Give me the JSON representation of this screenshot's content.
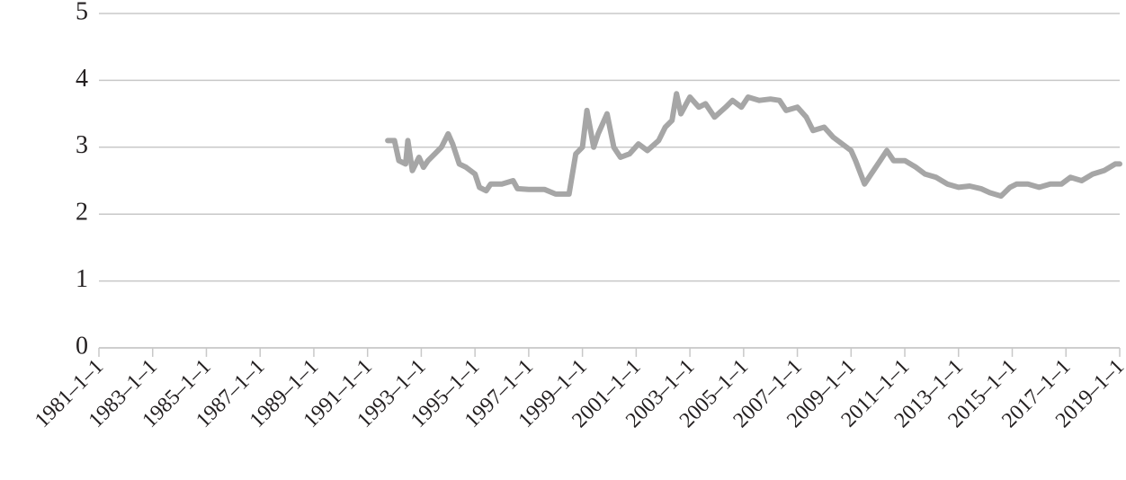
{
  "chart_data": {
    "type": "line",
    "x": [
      "1991-10-01",
      "1992-01-01",
      "1992-03-01",
      "1992-06-01",
      "1992-07-01",
      "1992-09-01",
      "1992-12-01",
      "1993-02-01",
      "1993-04-01",
      "1993-07-01",
      "1993-10-01",
      "1994-01-01",
      "1994-03-01",
      "1994-06-01",
      "1994-09-01",
      "1995-01-01",
      "1995-03-01",
      "1995-06-01",
      "1995-08-01",
      "1996-01-01",
      "1996-06-01",
      "1996-08-01",
      "1997-01-01",
      "1997-08-01",
      "1998-01-01",
      "1998-07-01",
      "1998-10-01",
      "1999-01-01",
      "1999-03-01",
      "1999-06-01",
      "1999-08-01",
      "1999-12-01",
      "2000-03-01",
      "2000-06-01",
      "2000-10-01",
      "2001-02-01",
      "2001-06-01",
      "2001-11-01",
      "2002-02-01",
      "2002-05-01",
      "2002-07-01",
      "2002-09-01",
      "2003-01-01",
      "2003-05-01",
      "2003-08-01",
      "2003-12-01",
      "2004-05-01",
      "2004-08-01",
      "2004-12-01",
      "2005-03-01",
      "2005-08-01",
      "2006-01-01",
      "2006-05-01",
      "2006-08-01",
      "2007-01-01",
      "2007-05-01",
      "2007-08-01",
      "2008-01-01",
      "2008-05-01",
      "2008-09-01",
      "2009-01-01",
      "2009-03-01",
      "2009-07-01",
      "2009-10-01",
      "2010-02-01",
      "2010-05-01",
      "2010-08-01",
      "2011-01-01",
      "2011-06-01",
      "2011-10-01",
      "2012-03-01",
      "2012-08-01",
      "2013-01-01",
      "2013-06-01",
      "2013-11-01",
      "2014-03-01",
      "2014-08-01",
      "2014-12-01",
      "2015-03-01",
      "2015-08-01",
      "2016-01-01",
      "2016-06-01",
      "2016-11-01",
      "2017-03-01",
      "2017-08-01",
      "2018-01-01",
      "2018-06-01",
      "2018-11-01",
      "2019-01-01"
    ],
    "series": [
      {
        "color": "#a6a6a6",
        "values": [
          3.1,
          3.1,
          2.8,
          2.75,
          3.1,
          2.65,
          2.85,
          2.7,
          2.8,
          2.9,
          3.0,
          3.2,
          3.05,
          2.75,
          2.7,
          2.6,
          2.4,
          2.35,
          2.45,
          2.45,
          2.5,
          2.38,
          2.37,
          2.37,
          2.3,
          2.3,
          2.9,
          3.0,
          3.55,
          3.0,
          3.2,
          3.5,
          3.0,
          2.85,
          2.9,
          3.05,
          2.95,
          3.1,
          3.3,
          3.4,
          3.8,
          3.5,
          3.75,
          3.6,
          3.65,
          3.45,
          3.6,
          3.7,
          3.6,
          3.75,
          3.7,
          3.72,
          3.7,
          3.55,
          3.6,
          3.45,
          3.25,
          3.3,
          3.15,
          3.05,
          2.95,
          2.8,
          2.45,
          2.6,
          2.8,
          2.95,
          2.8,
          2.8,
          2.7,
          2.6,
          2.55,
          2.45,
          2.4,
          2.42,
          2.38,
          2.32,
          2.27,
          2.4,
          2.45,
          2.45,
          2.4,
          2.45,
          2.45,
          2.55,
          2.5,
          2.6,
          2.65,
          2.75,
          2.75
        ]
      }
    ],
    "xlim": [
      "1981-01-01",
      "2019-01-01"
    ],
    "xticks": [
      {
        "value": "1981-01-01",
        "label": "1981–1–1"
      },
      {
        "value": "1983-01-01",
        "label": "1983–1–1"
      },
      {
        "value": "1985-01-01",
        "label": "1985–1–1"
      },
      {
        "value": "1987-01-01",
        "label": "1987–1–1"
      },
      {
        "value": "1989-01-01",
        "label": "1989–1–1"
      },
      {
        "value": "1991-01-01",
        "label": "1991–1–1"
      },
      {
        "value": "1993-01-01",
        "label": "1993–1–1"
      },
      {
        "value": "1995-01-01",
        "label": "1995–1–1"
      },
      {
        "value": "1997-01-01",
        "label": "1997–1–1"
      },
      {
        "value": "1999-01-01",
        "label": "1999–1–1"
      },
      {
        "value": "2001-01-01",
        "label": "2001–1–1"
      },
      {
        "value": "2003-01-01",
        "label": "2003–1–1"
      },
      {
        "value": "2005-01-01",
        "label": "2005–1–1"
      },
      {
        "value": "2007-01-01",
        "label": "2007–1–1"
      },
      {
        "value": "2009-01-01",
        "label": "2009–1–1"
      },
      {
        "value": "2011-01-01",
        "label": "2011–1–1"
      },
      {
        "value": "2013-01-01",
        "label": "2013–1–1"
      },
      {
        "value": "2015-01-01",
        "label": "2015–1–1"
      },
      {
        "value": "2017-01-01",
        "label": "2017–1–1"
      },
      {
        "value": "2019-01-01",
        "label": "2019–1–1"
      }
    ],
    "ylim": [
      0,
      5
    ],
    "yticks": [
      0,
      1,
      2,
      3,
      4,
      5
    ],
    "grid": true
  }
}
